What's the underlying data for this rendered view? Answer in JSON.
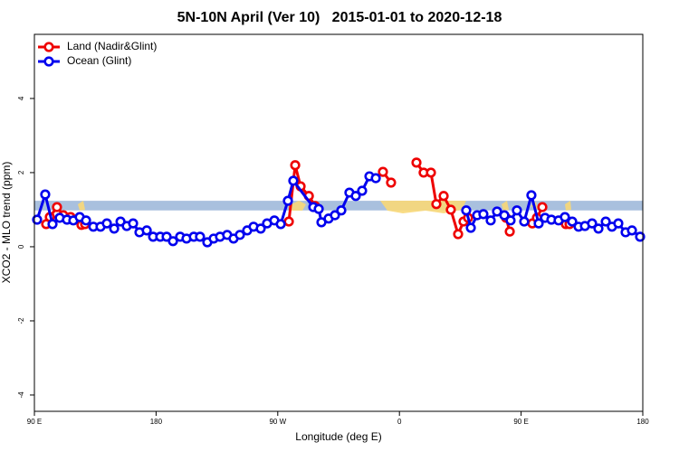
{
  "chart_data": {
    "type": "line",
    "title": "5N-10N April (Ver 10)   2015-01-01 to 2020-12-18",
    "x_label": "Longitude (deg E)",
    "y_label": "XCO2 - MLO trend (ppm)",
    "xlim": [
      90,
      540
    ],
    "xticks": [
      {
        "value": 90,
        "label": "90 E"
      },
      {
        "value": 180,
        "label": "180"
      },
      {
        "value": 270,
        "label": "90 W"
      },
      {
        "value": 360,
        "label": "0"
      },
      {
        "value": 450,
        "label": "90 E"
      },
      {
        "value": 540,
        "label": "180"
      }
    ],
    "ylim": [
      -4.44,
      5.73
    ],
    "yticks": [
      -4,
      -2,
      0,
      2,
      4
    ],
    "band": {
      "ymin": 0.98,
      "ymax": 1.24,
      "color": "#a9c0de"
    },
    "legend": "topleft",
    "series": [
      {
        "name": "Land (Nadir&Glint)",
        "color": "#ee0000",
        "x": [
          98.7,
          101.4,
          106.7,
          111.4,
          116.8,
          124.8,
          127.5,
          null,
          278.2,
          282.9,
          286.9,
          293.0,
          297.6,
          null,
          347.8,
          353.8,
          null,
          372.6,
          377.9,
          383.3,
          387.3,
          392.7,
          398.0,
          403.4,
          407.4,
          410.8,
          null,
          438.9,
          441.6,
          null,
          458.3,
          461.7,
          465.7,
          null,
          483.1,
          485.8
        ],
        "values": [
          0.61,
          0.8,
          1.07,
          0.85,
          0.8,
          0.59,
          0.61,
          null,
          0.68,
          2.2,
          1.63,
          1.37,
          1.1,
          null,
          2.02,
          1.73,
          null,
          2.27,
          2.0,
          2.0,
          1.15,
          1.37,
          1.0,
          0.34,
          0.68,
          0.78,
          null,
          0.78,
          0.41,
          null,
          0.63,
          0.78,
          1.07,
          null,
          0.61,
          0.61
        ]
      },
      {
        "name": "Ocean (Glint)",
        "color": "#0000ee",
        "x": [
          92.0,
          98.0,
          103.4,
          108.7,
          114.1,
          118.8,
          123.5,
          128.2,
          133.6,
          138.9,
          143.6,
          149.0,
          153.7,
          158.3,
          163.0,
          167.7,
          173.1,
          177.8,
          183.1,
          187.8,
          192.5,
          197.8,
          202.5,
          207.9,
          212.5,
          217.9,
          222.6,
          227.3,
          232.6,
          237.3,
          242.0,
          247.4,
          252.1,
          257.4,
          262.1,
          267.5,
          272.2,
          277.5,
          281.5,
          296.3,
          300.3,
          302.3,
          307.6,
          312.3,
          317.0,
          323.0,
          327.7,
          332.4,
          337.8,
          342.5,
          null,
          409.4,
          412.8,
          417.5,
          422.1,
          427.5,
          432.2,
          437.6,
          442.2,
          446.9,
          452.3,
          457.6,
          463.0,
          467.7,
          472.4,
          477.7,
          482.4,
          487.8,
          492.5,
          497.2,
          502.5,
          507.2,
          512.6,
          517.2,
          521.9,
          527.3,
          532.0,
          538.0
        ],
        "values": [
          0.73,
          1.41,
          0.61,
          0.78,
          0.73,
          0.71,
          0.8,
          0.71,
          0.54,
          0.54,
          0.63,
          0.49,
          0.68,
          0.56,
          0.63,
          0.39,
          0.44,
          0.27,
          0.27,
          0.27,
          0.15,
          0.27,
          0.22,
          0.27,
          0.27,
          0.12,
          0.22,
          0.27,
          0.32,
          0.22,
          0.32,
          0.44,
          0.54,
          0.49,
          0.63,
          0.71,
          0.61,
          1.24,
          1.78,
          1.07,
          1.02,
          0.66,
          0.76,
          0.85,
          0.98,
          1.46,
          1.37,
          1.51,
          1.9,
          1.85,
          null,
          0.98,
          0.51,
          0.85,
          0.88,
          0.71,
          0.95,
          0.85,
          0.71,
          0.98,
          0.68,
          1.39,
          0.63,
          0.78,
          0.73,
          0.71,
          0.8,
          0.68,
          0.54,
          0.56,
          0.63,
          0.49,
          0.68,
          0.54,
          0.63,
          0.39,
          0.44,
          0.27
        ]
      }
    ]
  }
}
